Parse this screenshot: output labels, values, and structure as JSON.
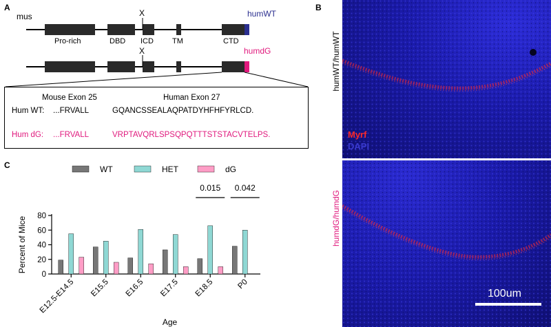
{
  "panel_a": {
    "letter": "A",
    "species_label": "mus",
    "knockout_mark": "X",
    "construct_wt": "humWT",
    "construct_dg": "humdG",
    "domains": [
      "Pro-rich",
      "DBD",
      "ICD",
      "TM",
      "CTD"
    ],
    "exon_mouse": "Mouse Exon 25",
    "exon_human": "Human Exon 27",
    "wt_label": "Hum WT:",
    "wt_mouse_seq": "...FRVALL",
    "wt_human_seq": "GQANCSSEALAQPATDYHFHFYRLCD.",
    "dg_label": "Hum dG:",
    "dg_mouse_seq": "...FRVALL",
    "dg_human_seq": "VRPTAVQRLSPSQPQTTTSTSTACVTELPS.",
    "colors": {
      "wt": "#2b2f8f",
      "dg": "#e0197d",
      "domain": "#2a2a2a"
    }
  },
  "panel_b": {
    "letter": "B",
    "top_label": "humWT/humWT",
    "bottom_label": "humdG/humdG",
    "legend_myrf": "Myrf",
    "legend_dapi": "DAPI",
    "scale_bar": "100um",
    "colors": {
      "myrf": "#ff2a2a",
      "dapi": "#3a3ad0",
      "bottom_label": "#e0197d"
    }
  },
  "panel_c": {
    "letter": "C",
    "chart_data": {
      "type": "bar",
      "categories": [
        "E12.5-E14.5",
        "E15.5",
        "E16.5",
        "E17.5",
        "E18.5",
        "P0"
      ],
      "series": [
        {
          "name": "WT",
          "values": [
            19,
            37,
            22,
            33,
            21,
            38
          ],
          "color": "#777777"
        },
        {
          "name": "HET",
          "values": [
            55,
            45,
            61,
            54,
            66,
            60
          ],
          "color": "#8fd8d4"
        },
        {
          "name": "dG",
          "values": [
            23,
            16,
            14,
            10,
            10,
            0
          ],
          "color": "#ff9dc6"
        }
      ],
      "xlabel": "Age",
      "ylabel": "Percent of Mice",
      "ylim": [
        0,
        80
      ],
      "yticks": [
        0,
        20,
        40,
        60,
        80
      ],
      "legend": "top",
      "annotations": [
        {
          "category": "E18.5",
          "text": "0.015"
        },
        {
          "category": "P0",
          "text": "0.042"
        }
      ]
    }
  }
}
